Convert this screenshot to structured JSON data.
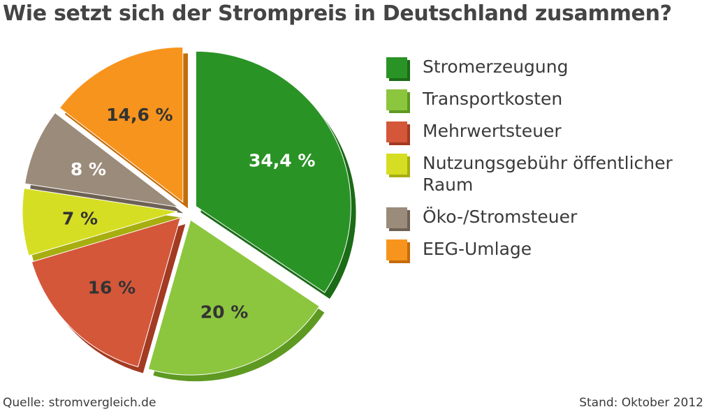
{
  "title": "Wie setzt sich der Strompreis in Deutschland zusammen?",
  "chart_data": {
    "type": "pie",
    "title": "Wie setzt sich der Strompreis in Deutschland zusammen?",
    "categories": [
      "Stromerzeugung",
      "Transportkosten",
      "Mehrwertsteuer",
      "Nutzungsgebühr öffentlicher Raum",
      "Öko-/Stromsteuer",
      "EEG-Umlage"
    ],
    "values": [
      34.4,
      20,
      16,
      7,
      8,
      14.6
    ],
    "value_labels": [
      "34,4 %",
      "20 %",
      "16 %",
      "7 %",
      "8 %",
      "14,6 %"
    ],
    "colors": [
      "#2a9326",
      "#8cc63f",
      "#d4573a",
      "#d6de23",
      "#9b8b7a",
      "#f7941d"
    ],
    "label_colors": [
      "#ffffff",
      "#333333",
      "#333333",
      "#333333",
      "#ffffff",
      "#333333"
    ],
    "legend_position": "right"
  },
  "legend": {
    "items": [
      {
        "label": "Stromerzeugung",
        "color": "#2a9326",
        "shade": "#1b6b17"
      },
      {
        "label": "Transportkosten",
        "color": "#8cc63f",
        "shade": "#5e9a22"
      },
      {
        "label": "Mehrwertsteuer",
        "color": "#d4573a",
        "shade": "#a33a22"
      },
      {
        "label": "Nutzungsgebühr öffentlicher Raum",
        "color": "#d6de23",
        "shade": "#a7ae10"
      },
      {
        "label": "Öko-/Stromsteuer",
        "color": "#9b8b7a",
        "shade": "#6e6154"
      },
      {
        "label": "EEG-Umlage",
        "color": "#f7941d",
        "shade": "#c46d0a"
      }
    ]
  },
  "footer": {
    "source": "Quelle: stromvergleich.de",
    "date": "Stand: Oktober 2012"
  }
}
